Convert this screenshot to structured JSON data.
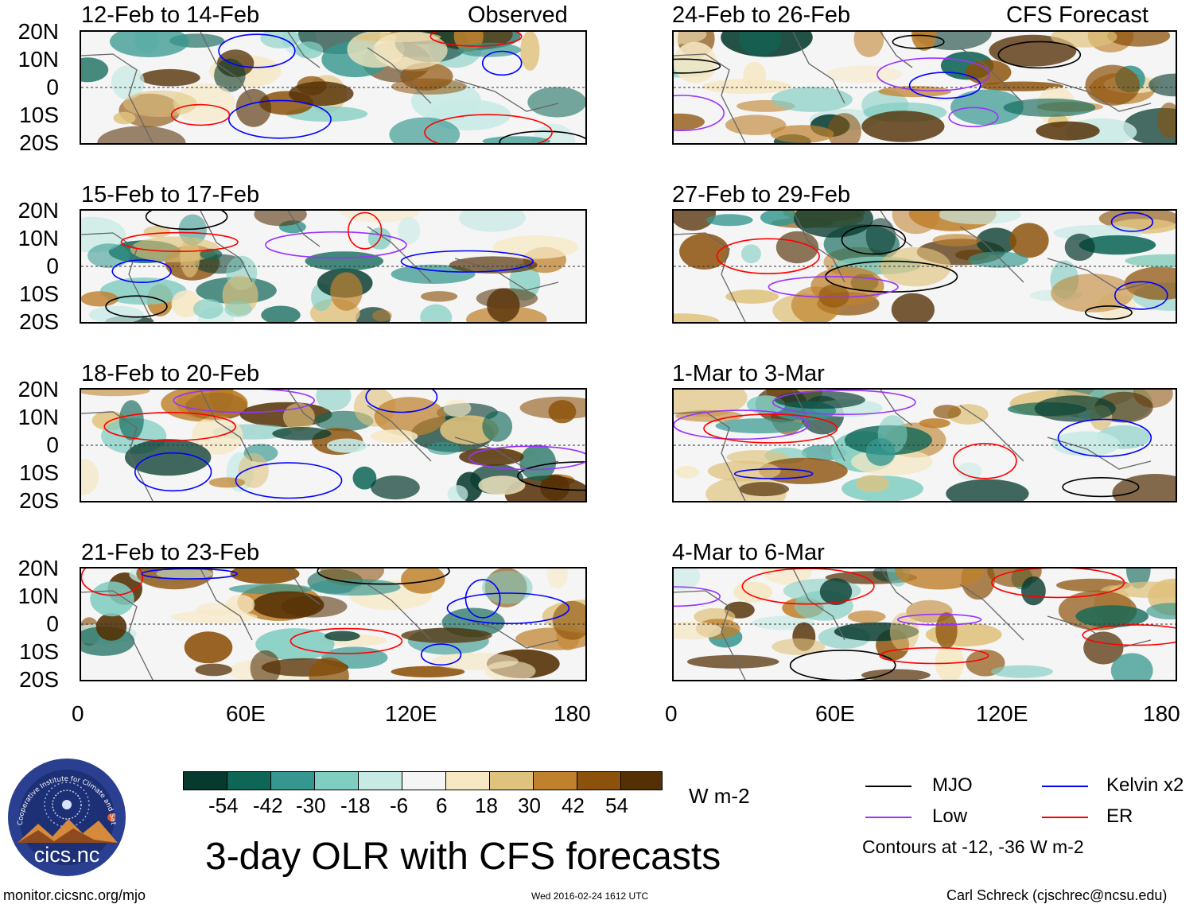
{
  "title": "3-day OLR with CFS forecasts",
  "site": "monitor.cicsnc.org/mjo",
  "timestamp": "Wed 2016-02-24 1612 UTC",
  "author": "Carl Schreck (cjschrec@ncsu.edu)",
  "logo": {
    "text": "cics.nc",
    "ring_text": "Cooperative Institute for Climate and Satellites"
  },
  "columns": {
    "left": {
      "label": "Observed"
    },
    "right": {
      "label": "CFS Forecast"
    }
  },
  "lat_labels": [
    "20N",
    "10N",
    "0",
    "10S",
    "20S"
  ],
  "lon_labels": [
    "0",
    "60E",
    "120E",
    "180"
  ],
  "panels": [
    {
      "period": "12-Feb to 14-Feb",
      "column": "left"
    },
    {
      "period": "15-Feb to 17-Feb",
      "column": "left"
    },
    {
      "period": "18-Feb to 20-Feb",
      "column": "left"
    },
    {
      "period": "21-Feb to 23-Feb",
      "column": "left"
    },
    {
      "period": "24-Feb to 26-Feb",
      "column": "right"
    },
    {
      "period": "27-Feb to 29-Feb",
      "column": "right"
    },
    {
      "period": "1-Mar to 3-Mar",
      "column": "right"
    },
    {
      "period": "4-Mar to 6-Mar",
      "column": "right"
    }
  ],
  "colorbar": {
    "units": "W m-2",
    "labels": [
      "-54",
      "-42",
      "-30",
      "-18",
      "-6",
      "6",
      "18",
      "30",
      "42",
      "54"
    ],
    "colors": [
      "#073a2e",
      "#0e6657",
      "#35978f",
      "#80cdc1",
      "#c7eae5",
      "#f5f5f5",
      "#f6e8c3",
      "#dfc27d",
      "#bf812d",
      "#8c510a",
      "#543005"
    ]
  },
  "legend": {
    "items": [
      {
        "label": "MJO",
        "color": "#000000"
      },
      {
        "label": "Kelvin x2",
        "color": "#0000ff"
      },
      {
        "label": "Low",
        "color": "#9933ff"
      },
      {
        "label": "ER",
        "color": "#ff0000"
      }
    ],
    "note": "Contours at -12, -36 W m-2"
  }
}
